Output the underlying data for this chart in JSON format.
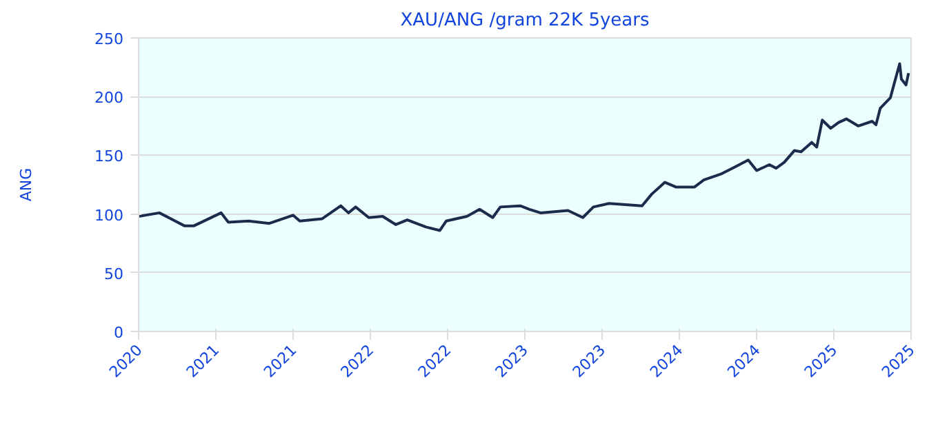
{
  "chart_data": {
    "type": "line",
    "title": "XAU/ANG /gram 22K 5years",
    "ylabel": "ANG",
    "x": [
      "2020-10-20",
      "2020-12-08",
      "2021-02-05",
      "2021-02-28",
      "2021-05-03",
      "2021-05-20",
      "2021-07-07",
      "2021-08-25",
      "2021-10-20",
      "2021-11-05",
      "2021-12-28",
      "2022-02-10",
      "2022-02-28",
      "2022-03-17",
      "2022-04-17",
      "2022-05-20",
      "2022-06-20",
      "2022-07-17",
      "2022-08-30",
      "2022-10-02",
      "2022-10-17",
      "2022-12-05",
      "2023-01-04",
      "2023-02-04",
      "2023-02-22",
      "2023-04-10",
      "2023-05-02",
      "2023-05-28",
      "2023-08-01",
      "2023-09-05",
      "2023-09-30",
      "2023-11-06",
      "2024-01-23",
      "2024-02-15",
      "2024-03-17",
      "2024-04-12",
      "2024-05-26",
      "2024-06-17",
      "2024-07-27",
      "2024-08-29",
      "2024-09-30",
      "2024-10-20",
      "2024-11-19",
      "2024-12-05",
      "2024-12-24",
      "2025-01-17",
      "2025-02-02",
      "2025-02-27",
      "2025-03-11",
      "2025-03-24",
      "2025-04-13",
      "2025-05-02",
      "2025-05-20",
      "2025-06-17",
      "2025-07-20",
      "2025-07-29",
      "2025-08-08",
      "2025-09-01",
      "2025-09-10",
      "2025-09-23",
      "2025-09-27",
      "2025-10-08",
      "2025-10-14"
    ],
    "series": [
      {
        "color": "#1a2b4c",
        "values": [
          98,
          101,
          90,
          90,
          101,
          93,
          94,
          92,
          99,
          94,
          96,
          107,
          101,
          106,
          97,
          98,
          91,
          95,
          89,
          86,
          94,
          98,
          104,
          97,
          106,
          107,
          104,
          101,
          103,
          97,
          106,
          109,
          107,
          117,
          127,
          123,
          123,
          129,
          134,
          140,
          146,
          137,
          142,
          139,
          144,
          154,
          153,
          161,
          157,
          180,
          173,
          178,
          181,
          175,
          179,
          176,
          190,
          199,
          211,
          228,
          215,
          210,
          220
        ]
      }
    ],
    "xlim": [
      "2020-10-20",
      "2025-10-20"
    ],
    "xticks": [
      {
        "value": "2020-10-20",
        "label": "2020"
      },
      {
        "value": "2021-04-20",
        "label": "2021"
      },
      {
        "value": "2021-10-20",
        "label": "2021"
      },
      {
        "value": "2022-04-20",
        "label": "2022"
      },
      {
        "value": "2022-10-20",
        "label": "2022"
      },
      {
        "value": "2023-04-20",
        "label": "2023"
      },
      {
        "value": "2023-10-20",
        "label": "2023"
      },
      {
        "value": "2024-04-20",
        "label": "2024"
      },
      {
        "value": "2024-10-20",
        "label": "2024"
      },
      {
        "value": "2025-04-20",
        "label": "2025"
      },
      {
        "value": "2025-10-20",
        "label": "2025"
      }
    ],
    "ylim": [
      0,
      250
    ],
    "yticks": [
      0,
      50,
      100,
      150,
      200,
      250
    ],
    "grid": "y",
    "marker": "none",
    "line_style": "solid"
  }
}
